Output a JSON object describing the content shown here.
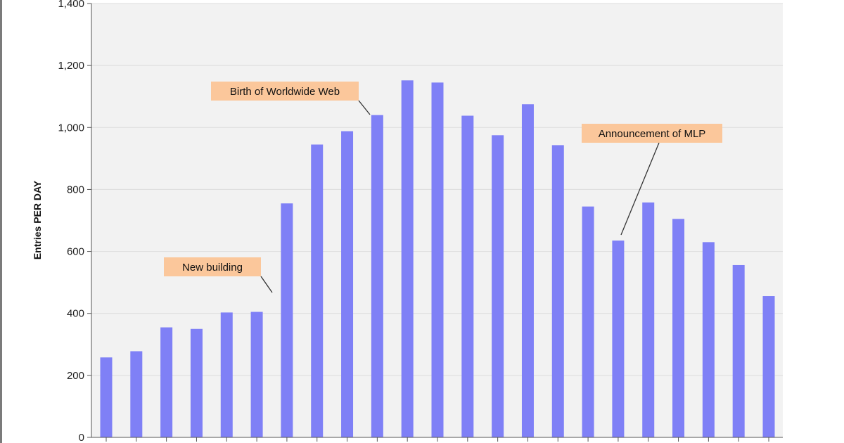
{
  "chart_data": {
    "type": "bar",
    "ylabel": "Entries PER DAY",
    "ylim": [
      0,
      1400
    ],
    "yticks": [
      0,
      200,
      400,
      600,
      800,
      1000,
      1200,
      1400
    ],
    "ytick_labels": [
      "0",
      "200",
      "400",
      "600",
      "800",
      "1,000",
      "1,200",
      "1,400"
    ],
    "values": [
      258,
      278,
      355,
      350,
      403,
      405,
      755,
      945,
      988,
      1040,
      1152,
      1145,
      1038,
      975,
      1075,
      943,
      745,
      635,
      758,
      705,
      630,
      556,
      456
    ],
    "grid": true,
    "annotations": [
      {
        "label": "New building",
        "bar_index": 6
      },
      {
        "label": "Birth of Worldwide Web",
        "bar_index": 9
      },
      {
        "label": "Announcement of MLP",
        "bar_index": 17
      }
    ],
    "colors": {
      "bar": "#7f80f6",
      "plot_background": "#f2f2f2",
      "annotation_box": "#fbc79b",
      "grid": "#dcdcdc"
    }
  }
}
